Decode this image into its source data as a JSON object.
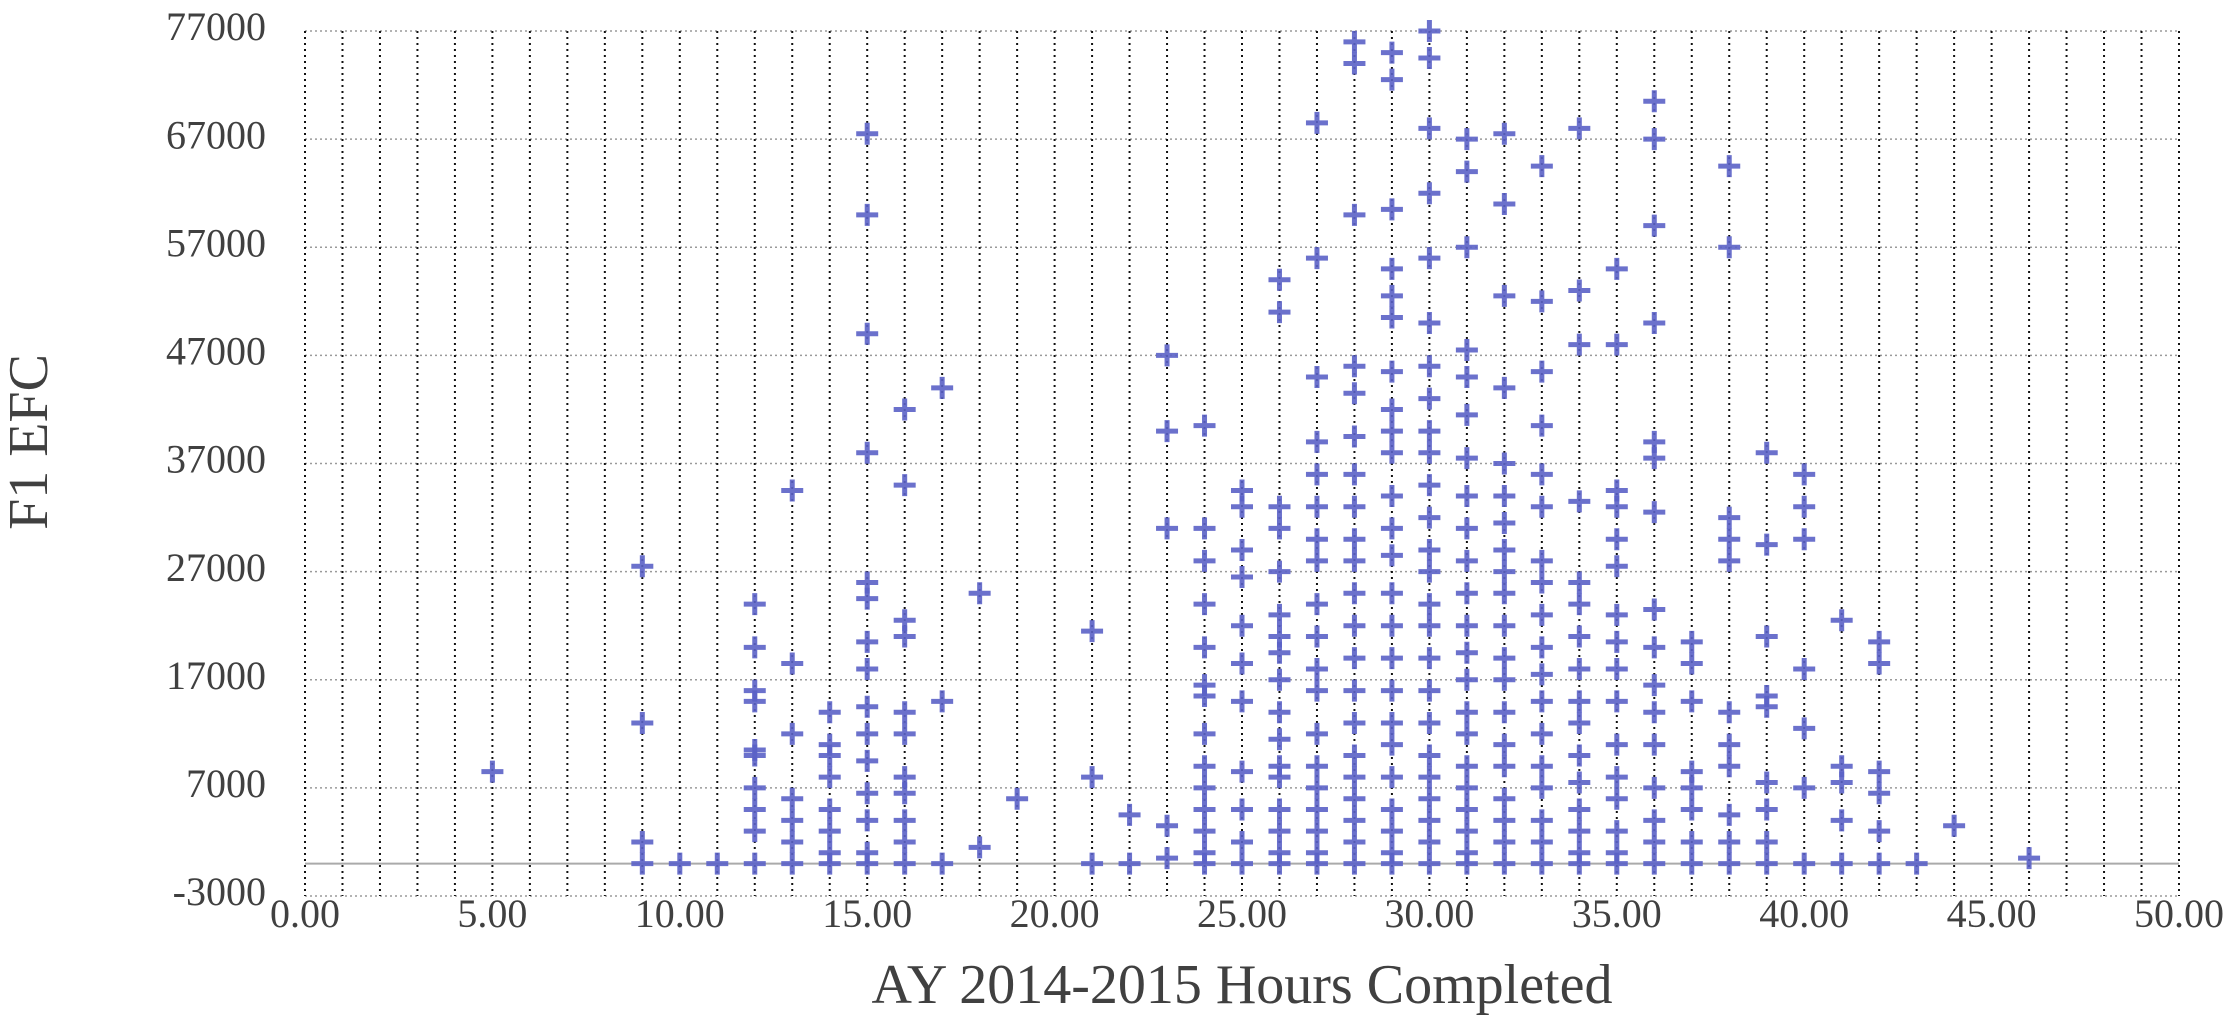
{
  "chart_data": {
    "type": "scatter",
    "x_label": "AY 2014-2015 Hours Completed",
    "y_label": "F1 EFC",
    "color": "#5b62c6",
    "grid": true,
    "xlim": [
      0,
      50
    ],
    "xticks": [
      {
        "value": 0,
        "label": "0.00"
      },
      {
        "value": 5,
        "label": "5.00"
      },
      {
        "value": 10,
        "label": "10.00"
      },
      {
        "value": 15,
        "label": "15.00"
      },
      {
        "value": 20,
        "label": "20.00"
      },
      {
        "value": 25,
        "label": "25.00"
      },
      {
        "value": 30,
        "label": "30.00"
      },
      {
        "value": 35,
        "label": "35.00"
      },
      {
        "value": 40,
        "label": "40.00"
      },
      {
        "value": 45,
        "label": "45.00"
      },
      {
        "value": 50,
        "label": "50.00"
      }
    ],
    "ylim": [
      -3000,
      77000
    ],
    "yticks": [
      -3000,
      7000,
      17000,
      27000,
      37000,
      47000,
      57000,
      67000,
      77000
    ],
    "x": [
      5,
      9,
      9,
      9,
      9,
      10,
      11,
      12,
      12,
      12,
      12,
      12,
      12,
      12,
      12,
      12,
      12,
      13,
      13,
      13,
      13,
      13,
      13,
      13,
      14,
      14,
      14,
      14,
      14,
      14,
      14,
      14,
      15,
      15,
      15,
      15,
      15,
      15,
      15,
      15,
      15,
      15,
      15,
      15,
      15,
      15,
      15,
      16,
      16,
      16,
      16,
      16,
      16,
      16,
      16,
      16,
      16,
      16,
      17,
      17,
      17,
      18,
      18,
      19,
      21,
      21,
      21,
      22,
      22,
      23,
      23,
      23,
      23,
      23,
      24,
      24,
      24,
      24,
      24,
      24,
      24,
      24,
      24,
      24,
      24,
      24,
      24,
      24,
      25,
      25,
      25,
      25,
      25,
      25,
      25,
      25,
      25,
      25,
      25,
      26,
      26,
      26,
      26,
      26,
      26,
      26,
      26,
      26,
      26,
      26,
      26,
      26,
      26,
      26,
      26,
      26,
      27,
      27,
      27,
      27,
      27,
      27,
      27,
      27,
      27,
      27,
      27,
      27,
      27,
      27,
      27,
      27,
      27,
      27,
      27,
      28,
      28,
      28,
      28,
      28,
      28,
      28,
      28,
      28,
      28,
      28,
      28,
      28,
      28,
      28,
      28,
      28,
      28,
      28,
      28,
      28,
      29,
      29,
      29,
      29,
      29,
      29,
      29,
      29,
      29,
      29,
      29,
      29,
      29,
      29,
      29,
      29,
      29,
      29,
      29,
      29,
      29,
      29,
      29,
      29,
      30,
      30,
      30,
      30,
      30,
      30,
      30,
      30,
      30,
      30,
      30,
      30,
      30,
      30,
      30,
      30,
      30,
      30,
      30,
      30,
      30,
      30,
      30,
      30,
      30,
      31,
      31,
      31,
      31,
      31,
      31,
      31,
      31,
      31,
      31,
      31,
      31,
      31,
      31,
      31,
      31,
      31,
      31,
      31,
      31,
      31,
      31,
      32,
      32,
      32,
      32,
      32,
      32,
      32,
      32,
      32,
      32,
      32,
      32,
      32,
      32,
      32,
      32,
      32,
      32,
      32,
      32,
      33,
      33,
      33,
      33,
      33,
      33,
      33,
      33,
      33,
      33,
      33,
      33,
      33,
      33,
      33,
      33,
      33,
      33,
      34,
      34,
      34,
      34,
      34,
      34,
      34,
      34,
      34,
      34,
      34,
      34,
      34,
      34,
      34,
      34,
      35,
      35,
      35,
      35,
      35,
      35,
      35,
      35,
      35,
      35,
      35,
      35,
      35,
      35,
      35,
      35,
      36,
      36,
      36,
      36,
      36,
      36,
      36,
      36,
      36,
      36,
      36,
      36,
      36,
      36,
      36,
      36,
      37,
      37,
      37,
      37,
      37,
      37,
      37,
      37,
      38,
      38,
      38,
      38,
      38,
      38,
      38,
      38,
      38,
      38,
      38,
      39,
      39,
      39,
      39,
      39,
      39,
      39,
      39,
      39,
      40,
      40,
      40,
      40,
      40,
      40,
      40,
      41,
      41,
      41,
      41,
      41,
      42,
      42,
      42,
      42,
      42,
      42,
      43,
      44,
      46
    ],
    "values": [
      8500,
      27500,
      13000,
      2000,
      0,
      0,
      0,
      24000,
      20000,
      16000,
      15000,
      10500,
      10000,
      7000,
      5000,
      3000,
      0,
      34500,
      18500,
      12000,
      6000,
      4000,
      2000,
      0,
      14000,
      11000,
      10000,
      8000,
      5000,
      3000,
      1000,
      0,
      67500,
      60000,
      49000,
      38000,
      26000,
      24500,
      20500,
      18000,
      14500,
      12000,
      9500,
      6500,
      4000,
      1000,
      0,
      42000,
      35000,
      22500,
      21000,
      14000,
      12000,
      8000,
      6500,
      4000,
      2000,
      0,
      44000,
      15000,
      0,
      25000,
      1500,
      6000,
      21500,
      8000,
      0,
      4500,
      0,
      47000,
      40000,
      31000,
      3500,
      500,
      40500,
      31000,
      28000,
      24000,
      20000,
      16500,
      15500,
      12000,
      9000,
      7000,
      5000,
      3000,
      1000,
      0,
      34500,
      33000,
      29000,
      26500,
      22000,
      18500,
      15000,
      8500,
      5000,
      2000,
      0,
      54000,
      51000,
      33000,
      31000,
      27000,
      23000,
      21000,
      19500,
      17000,
      14000,
      11500,
      9000,
      8000,
      5000,
      3000,
      1000,
      0,
      68500,
      56000,
      45000,
      39000,
      36000,
      33000,
      30000,
      28000,
      24000,
      21000,
      18000,
      16000,
      12000,
      9000,
      7000,
      5000,
      3000,
      1000,
      0,
      76000,
      74000,
      60000,
      46000,
      43500,
      39500,
      36000,
      33000,
      30000,
      28000,
      25000,
      22000,
      19000,
      16000,
      13000,
      10000,
      8000,
      6000,
      4000,
      2000,
      0,
      75000,
      72500,
      60500,
      55000,
      52500,
      50500,
      45500,
      42000,
      40000,
      38000,
      34000,
      31000,
      28500,
      25000,
      22000,
      19000,
      16000,
      13000,
      11000,
      8000,
      5000,
      3000,
      1000,
      0,
      77000,
      74500,
      68000,
      62000,
      56000,
      50000,
      46000,
      43000,
      40000,
      38000,
      35000,
      32000,
      29000,
      27000,
      24000,
      22000,
      19000,
      16000,
      13000,
      10000,
      8000,
      6000,
      4000,
      2000,
      0,
      67000,
      64000,
      57000,
      47500,
      45000,
      41500,
      37500,
      34000,
      31000,
      28000,
      25000,
      22000,
      19500,
      17000,
      14000,
      12000,
      9000,
      7000,
      5000,
      3000,
      1000,
      0,
      67500,
      61000,
      52500,
      44000,
      37000,
      34000,
      31500,
      29000,
      27000,
      25000,
      22000,
      19000,
      17000,
      14000,
      11000,
      9000,
      6000,
      4000,
      2000,
      0,
      64500,
      52000,
      45500,
      40500,
      36000,
      33000,
      28000,
      26000,
      23000,
      20000,
      17500,
      15000,
      12000,
      9000,
      7000,
      4000,
      2000,
      0,
      68000,
      53000,
      48000,
      33500,
      26000,
      24000,
      21000,
      18000,
      15000,
      13000,
      10000,
      7500,
      5000,
      3000,
      1000,
      0,
      55000,
      48000,
      34500,
      33000,
      30000,
      27500,
      23000,
      20500,
      18000,
      15000,
      11000,
      8000,
      6000,
      3000,
      1000,
      0,
      70500,
      67000,
      59000,
      50000,
      39000,
      37500,
      32500,
      23500,
      20000,
      16500,
      14000,
      11000,
      7000,
      4000,
      2000,
      0,
      20500,
      18500,
      15000,
      8500,
      7000,
      5000,
      2000,
      0,
      64500,
      57000,
      32000,
      30000,
      28000,
      14000,
      11000,
      9000,
      4500,
      2000,
      0,
      38000,
      29500,
      21000,
      15500,
      14500,
      7500,
      5000,
      2000,
      0,
      36000,
      33000,
      30000,
      18000,
      12500,
      7000,
      0,
      22500,
      9000,
      7500,
      4000,
      0,
      20500,
      18500,
      8500,
      6500,
      3000,
      0,
      0,
      3500,
      500
    ]
  }
}
